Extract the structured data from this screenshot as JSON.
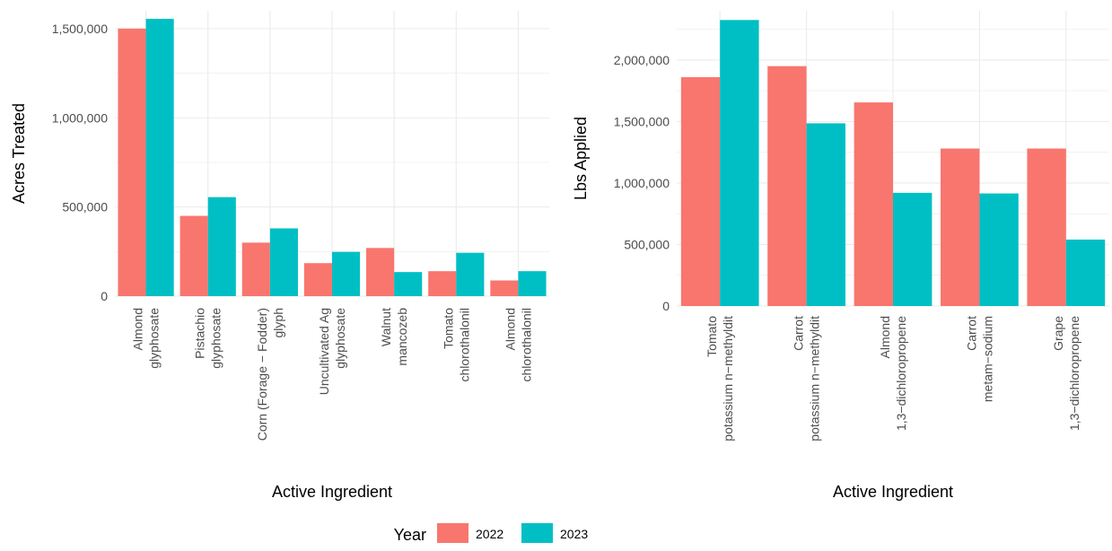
{
  "colors": {
    "2022": "#F8766D",
    "2023": "#00BFC4",
    "grid": "#EBEBEB"
  },
  "legend": {
    "title": "Year",
    "entries": [
      "2022",
      "2023"
    ]
  },
  "chart_data": [
    {
      "type": "bar",
      "title": "",
      "xlabel": "Active Ingredient",
      "ylabel": "Acres Treated",
      "ylim": [
        0,
        1600000
      ],
      "yticks": [
        0,
        500000,
        1000000,
        1500000
      ],
      "ytick_labels": [
        "0",
        "500,000",
        "1,000,000",
        "1,500,000"
      ],
      "categories": [
        [
          "Almond",
          "glyphosate"
        ],
        [
          "Pistachio",
          "glyphosate"
        ],
        [
          "Corn (Forage − Fodder)",
          "glyph"
        ],
        [
          "Uncultivated Ag",
          "glyphosate"
        ],
        [
          "Walnut",
          "mancozeb"
        ],
        [
          "Tomato",
          "chlorothalonil"
        ],
        [
          "Almond",
          "chlorothalonil"
        ]
      ],
      "series": [
        {
          "name": "2022",
          "values": [
            1500000,
            450000,
            300000,
            185000,
            270000,
            140000,
            88000
          ]
        },
        {
          "name": "2023",
          "values": [
            1555000,
            555000,
            380000,
            248000,
            135000,
            243000,
            140000
          ]
        }
      ]
    },
    {
      "type": "bar",
      "title": "",
      "xlabel": "Active Ingredient",
      "ylabel": "Lbs Applied",
      "ylim": [
        0,
        2400000
      ],
      "yticks": [
        0,
        500000,
        1000000,
        1500000,
        2000000
      ],
      "ytick_labels": [
        "0",
        "500,000",
        "1,000,000",
        "1,500,000",
        "2,000,000"
      ],
      "categories": [
        [
          "Tomato",
          "potassium n−methyldit"
        ],
        [
          "Carrot",
          "potassium n−methyldit"
        ],
        [
          "Almond",
          "1,3−dichloropropene"
        ],
        [
          "Carrot",
          "metam−sodium"
        ],
        [
          "Grape",
          "1,3−dichloropropene"
        ]
      ],
      "series": [
        {
          "name": "2022",
          "values": [
            1860000,
            1950000,
            1655000,
            1280000,
            1280000
          ]
        },
        {
          "name": "2023",
          "values": [
            2325000,
            1485000,
            920000,
            915000,
            540000
          ]
        }
      ]
    }
  ]
}
